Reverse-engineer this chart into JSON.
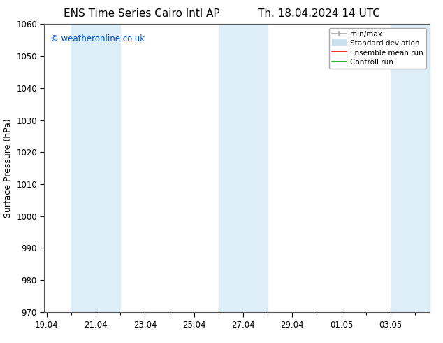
{
  "title_left": "ENS Time Series Cairo Intl AP",
  "title_right": "Th. 18.04.2024 14 UTC",
  "ylabel": "Surface Pressure (hPa)",
  "watermark": "© weatheronline.co.uk",
  "watermark_color": "#0055cc",
  "ylim": [
    970,
    1060
  ],
  "yticks": [
    970,
    980,
    990,
    1000,
    1010,
    1020,
    1030,
    1040,
    1050,
    1060
  ],
  "xtick_labels": [
    "19.04",
    "21.04",
    "23.04",
    "25.04",
    "27.04",
    "29.04",
    "01.05",
    "03.05"
  ],
  "xtick_positions": [
    0,
    2,
    4,
    6,
    8,
    10,
    12,
    14
  ],
  "xlim": [
    -0.1,
    15.6
  ],
  "bg_color": "#ffffff",
  "plot_bg_color": "#ffffff",
  "shaded_bands": [
    {
      "x_start": 1.0,
      "x_end": 3.0,
      "color": "#ddeef8"
    },
    {
      "x_start": 7.0,
      "x_end": 9.0,
      "color": "#ddeef8"
    },
    {
      "x_start": 14.0,
      "x_end": 15.6,
      "color": "#ddeef8"
    }
  ],
  "legend_items": [
    {
      "label": "min/max",
      "color": "#aaaaaa",
      "lw": 1.2
    },
    {
      "label": "Standard deviation",
      "color": "#c8dff0",
      "lw": 7
    },
    {
      "label": "Ensemble mean run",
      "color": "#ff0000",
      "lw": 1.2
    },
    {
      "label": "Controll run",
      "color": "#00aa00",
      "lw": 1.2
    }
  ],
  "title_fontsize": 11,
  "axis_label_fontsize": 9,
  "tick_fontsize": 8.5,
  "legend_fontsize": 7.5
}
